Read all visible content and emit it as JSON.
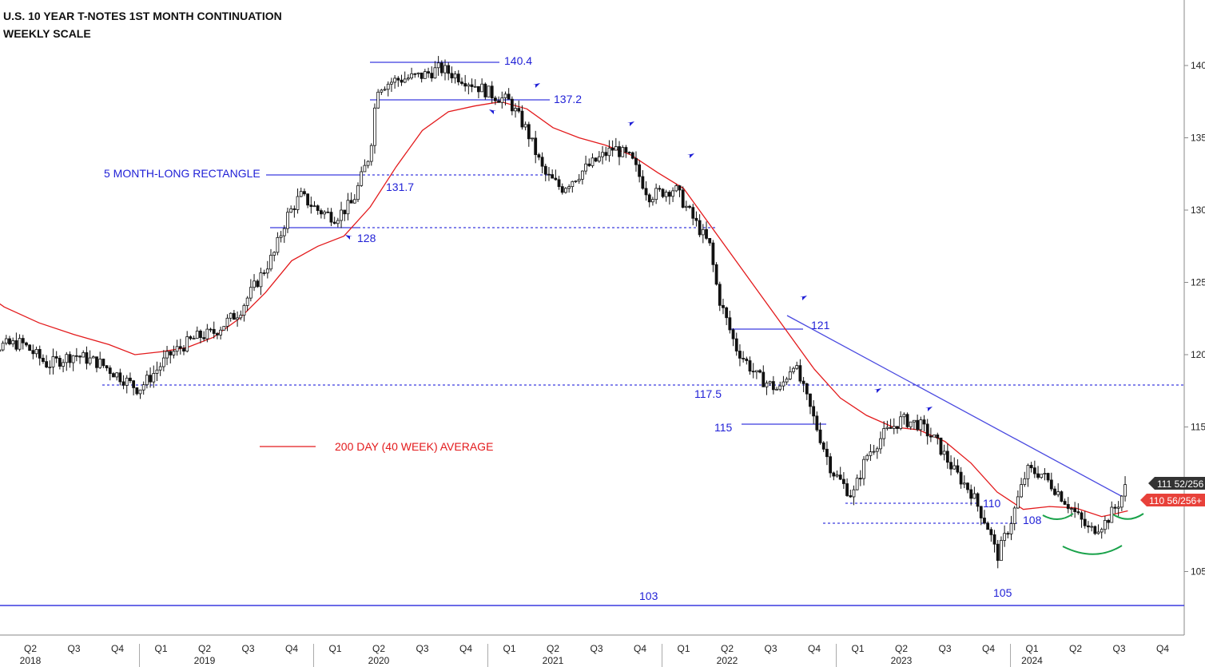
{
  "chart_data": {
    "type": "candlestick",
    "title": "U.S. 10 YEAR T-NOTES 1ST MONTH CONTINUATION",
    "subtitle": "WEEKLY SCALE",
    "y_ticks": [
      "140",
      "135",
      "130",
      "125",
      "120",
      "115",
      "110",
      "105"
    ],
    "ylim": [
      102,
      142
    ],
    "x_quarters": [
      {
        "label": "Q2",
        "t": 2018.25
      },
      {
        "label": "Q3",
        "t": 2018.5
      },
      {
        "label": "Q4",
        "t": 2018.75
      },
      {
        "label": "Q1",
        "t": 2019.0
      },
      {
        "label": "Q2",
        "t": 2019.25
      },
      {
        "label": "Q3",
        "t": 2019.5
      },
      {
        "label": "Q4",
        "t": 2019.75
      },
      {
        "label": "Q1",
        "t": 2020.0
      },
      {
        "label": "Q2",
        "t": 2020.25
      },
      {
        "label": "Q3",
        "t": 2020.5
      },
      {
        "label": "Q4",
        "t": 2020.75
      },
      {
        "label": "Q1",
        "t": 2021.0
      },
      {
        "label": "Q2",
        "t": 2021.25
      },
      {
        "label": "Q3",
        "t": 2021.5
      },
      {
        "label": "Q4",
        "t": 2021.75
      },
      {
        "label": "Q1",
        "t": 2022.0
      },
      {
        "label": "Q2",
        "t": 2022.25
      },
      {
        "label": "Q3",
        "t": 2022.5
      },
      {
        "label": "Q4",
        "t": 2022.75
      },
      {
        "label": "Q1",
        "t": 2023.0
      },
      {
        "label": "Q2",
        "t": 2023.25
      },
      {
        "label": "Q3",
        "t": 2023.5
      },
      {
        "label": "Q4",
        "t": 2023.75
      },
      {
        "label": "Q1",
        "t": 2024.0
      },
      {
        "label": "Q2",
        "t": 2024.25
      },
      {
        "label": "Q3",
        "t": 2024.5
      },
      {
        "label": "Q4",
        "t": 2024.75
      }
    ],
    "x_years": [
      {
        "label": "2018",
        "t": 2018.25
      },
      {
        "label": "2019",
        "t": 2019.25
      },
      {
        "label": "2020",
        "t": 2020.25
      },
      {
        "label": "2021",
        "t": 2021.25
      },
      {
        "label": "2022",
        "t": 2022.25
      },
      {
        "label": "2023",
        "t": 2023.25
      },
      {
        "label": "2024",
        "t": 2024.0
      }
    ],
    "price_path": [
      [
        2017.9,
        121.2
      ],
      [
        2018.0,
        120.5
      ],
      [
        2018.2,
        120.8
      ],
      [
        2018.35,
        119.3
      ],
      [
        2018.5,
        120.0
      ],
      [
        2018.65,
        119.4
      ],
      [
        2018.8,
        118.2
      ],
      [
        2018.87,
        117.6
      ],
      [
        2018.95,
        118.6
      ],
      [
        2019.05,
        120.0
      ],
      [
        2019.2,
        121.2
      ],
      [
        2019.3,
        121.5
      ],
      [
        2019.45,
        123.0
      ],
      [
        2019.55,
        125.0
      ],
      [
        2019.65,
        127.0
      ],
      [
        2019.72,
        129.5
      ],
      [
        2019.8,
        131.0
      ],
      [
        2019.9,
        130.0
      ],
      [
        2020.0,
        129.5
      ],
      [
        2020.1,
        130.5
      ],
      [
        2020.2,
        134.0
      ],
      [
        2020.24,
        138.5
      ],
      [
        2020.35,
        139.0
      ],
      [
        2020.5,
        139.3
      ],
      [
        2020.6,
        139.8
      ],
      [
        2020.75,
        139.0
      ],
      [
        2020.9,
        138.0
      ],
      [
        2021.0,
        137.5
      ],
      [
        2021.1,
        135.5
      ],
      [
        2021.2,
        132.5
      ],
      [
        2021.3,
        131.5
      ],
      [
        2021.45,
        133.0
      ],
      [
        2021.6,
        134.3
      ],
      [
        2021.7,
        133.5
      ],
      [
        2021.8,
        131.0
      ],
      [
        2021.95,
        131.5
      ],
      [
        2022.05,
        129.5
      ],
      [
        2022.15,
        127.5
      ],
      [
        2022.2,
        124.0
      ],
      [
        2022.3,
        120.5
      ],
      [
        2022.42,
        118.5
      ],
      [
        2022.55,
        117.5
      ],
      [
        2022.63,
        119.5
      ],
      [
        2022.72,
        116.5
      ],
      [
        2022.85,
        112.0
      ],
      [
        2022.97,
        110.2
      ],
      [
        2023.05,
        113.0
      ],
      [
        2023.15,
        114.5
      ],
      [
        2023.25,
        115.5
      ],
      [
        2023.35,
        115.2
      ],
      [
        2023.45,
        114.0
      ],
      [
        2023.55,
        112.0
      ],
      [
        2023.65,
        110.5
      ],
      [
        2023.75,
        108.0
      ],
      [
        2023.8,
        106.0
      ],
      [
        2023.88,
        108.5
      ],
      [
        2023.97,
        112.0
      ],
      [
        2024.05,
        111.8
      ],
      [
        2024.15,
        110.5
      ],
      [
        2024.25,
        109.0
      ],
      [
        2024.33,
        107.8
      ],
      [
        2024.42,
        108.4
      ],
      [
        2024.5,
        109.8
      ],
      [
        2024.55,
        111.2
      ]
    ],
    "moving_average_path": [
      [
        2017.9,
        125.0
      ],
      [
        2018.1,
        123.3
      ],
      [
        2018.3,
        122.2
      ],
      [
        2018.5,
        121.4
      ],
      [
        2018.7,
        120.7
      ],
      [
        2018.85,
        120.0
      ],
      [
        2019.0,
        120.2
      ],
      [
        2019.15,
        120.5
      ],
      [
        2019.3,
        121.2
      ],
      [
        2019.45,
        122.5
      ],
      [
        2019.6,
        124.3
      ],
      [
        2019.75,
        126.5
      ],
      [
        2019.9,
        127.5
      ],
      [
        2020.05,
        128.2
      ],
      [
        2020.2,
        130.2
      ],
      [
        2020.35,
        133.0
      ],
      [
        2020.5,
        135.5
      ],
      [
        2020.65,
        136.8
      ],
      [
        2020.8,
        137.2
      ],
      [
        2020.95,
        137.5
      ],
      [
        2021.1,
        137.0
      ],
      [
        2021.25,
        135.7
      ],
      [
        2021.4,
        135.0
      ],
      [
        2021.55,
        134.5
      ],
      [
        2021.7,
        133.8
      ],
      [
        2021.85,
        132.6
      ],
      [
        2022.0,
        131.5
      ],
      [
        2022.15,
        129.0
      ],
      [
        2022.3,
        126.5
      ],
      [
        2022.45,
        124.0
      ],
      [
        2022.6,
        121.5
      ],
      [
        2022.75,
        119.0
      ],
      [
        2022.9,
        117.0
      ],
      [
        2023.05,
        115.8
      ],
      [
        2023.2,
        115.0
      ],
      [
        2023.35,
        114.8
      ],
      [
        2023.5,
        114.0
      ],
      [
        2023.65,
        112.5
      ],
      [
        2023.8,
        110.5
      ],
      [
        2023.95,
        109.3
      ],
      [
        2024.1,
        109.5
      ],
      [
        2024.25,
        109.4
      ],
      [
        2024.4,
        108.8
      ],
      [
        2024.48,
        109.0
      ],
      [
        2024.55,
        109.2
      ]
    ],
    "legend": "200 DAY (40 WEEK) AVERAGE",
    "price_tags": [
      "111 52/256",
      "110 56/256+"
    ],
    "colors": {
      "price": "#111111",
      "average": "#e31a1c",
      "annotation": "#1f1fd6",
      "pattern": "#19a24a",
      "tag_price": "#333333",
      "tag_avg": "#e8413a"
    },
    "annotations": {
      "rectangle_label": "5 MONTH-LONG RECTANGLE",
      "levels": [
        {
          "label": "140.4",
          "y": 140.4
        },
        {
          "label": "137.2",
          "y": 137.2
        },
        {
          "label": "131.7",
          "y": 131.7
        },
        {
          "label": "128",
          "y": 128
        },
        {
          "label": "121",
          "y": 121
        },
        {
          "label": "117.5",
          "y": 117.5
        },
        {
          "label": "115",
          "y": 115
        },
        {
          "label": "110",
          "y": 110
        },
        {
          "label": "108",
          "y": 108
        },
        {
          "label": "105",
          "y": 105
        },
        {
          "label": "103",
          "y": 103
        }
      ]
    }
  }
}
